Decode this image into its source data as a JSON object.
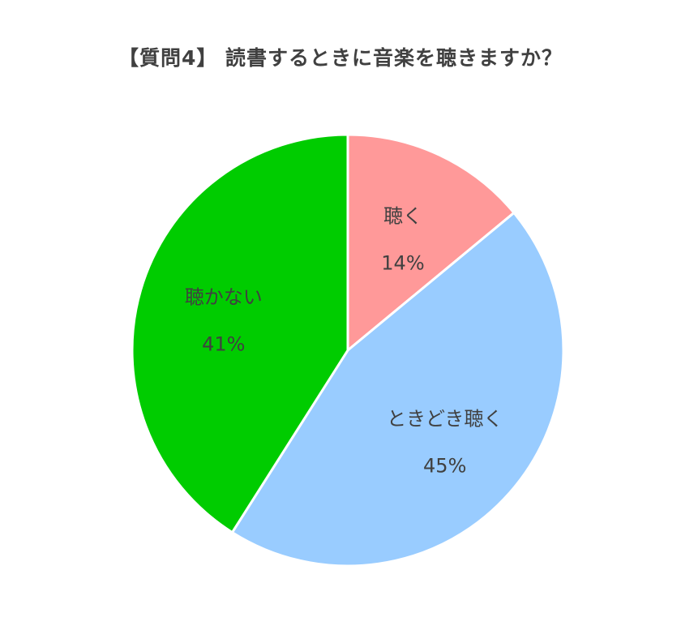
{
  "chart_data": {
    "type": "pie",
    "title": "【質問4】 読書するときに音楽を聴きますか？",
    "slices": [
      {
        "label": "聴く",
        "value": 14,
        "value_label": "14%",
        "color": "#FF9999"
      },
      {
        "label": "ときどき聴く",
        "value": 45,
        "value_label": "45%",
        "color": "#99CCFF"
      },
      {
        "label": "聴かない",
        "value": 41,
        "value_label": "41%",
        "color": "#00CC00"
      }
    ],
    "start_angle": "top",
    "direction": "clockwise",
    "legend": "none"
  }
}
